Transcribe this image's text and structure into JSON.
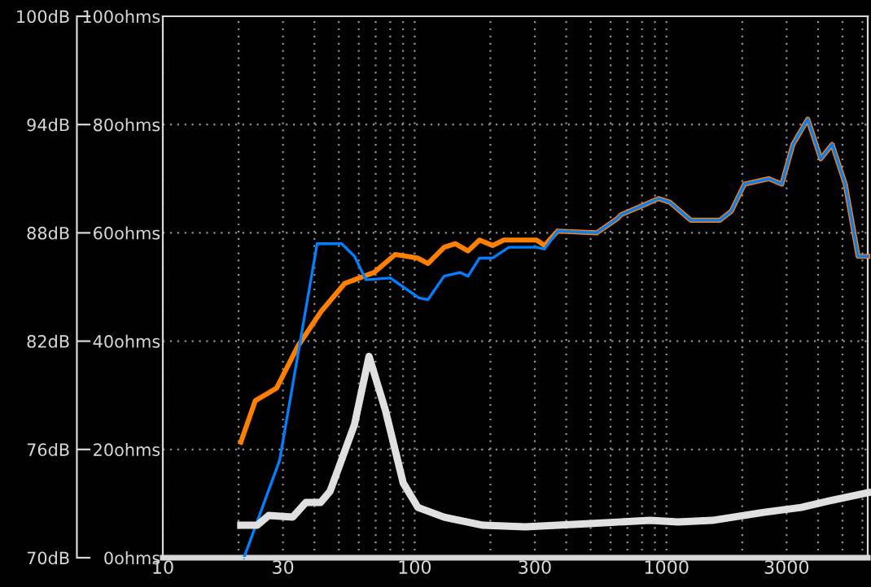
{
  "chart_data": {
    "type": "line",
    "log": "x",
    "grid": true,
    "marker": "none",
    "line_style": "solid",
    "xlim": [
      10,
      6300
    ],
    "ylim": [
      70,
      100
    ],
    "y2lim": [
      0,
      100
    ],
    "xticks": [
      10,
      {
        "value": 20,
        "label": null
      },
      30,
      {
        "value": 40,
        "label": null
      },
      {
        "value": 50,
        "label": null
      },
      {
        "value": 60,
        "label": null
      },
      {
        "value": 70,
        "label": null
      },
      {
        "value": 80,
        "label": null
      },
      {
        "value": 90,
        "label": null
      },
      100,
      {
        "value": 200,
        "label": null
      },
      300,
      {
        "value": 400,
        "label": null
      },
      {
        "value": 500,
        "label": null
      },
      {
        "value": 600,
        "label": null
      },
      {
        "value": 700,
        "label": null
      },
      {
        "value": 800,
        "label": null
      },
      {
        "value": 900,
        "label": null
      },
      1000,
      {
        "value": 2000,
        "label": null
      },
      3000,
      {
        "value": 4000,
        "label": null
      },
      {
        "value": 5000,
        "label": null
      },
      {
        "value": 6000,
        "label": null
      }
    ],
    "yticks": [
      {
        "value": 70,
        "label": "70dB"
      },
      {
        "value": 76,
        "label": "76dB"
      },
      {
        "value": 82,
        "label": "82dB"
      },
      {
        "value": 88,
        "label": "88dB"
      },
      {
        "value": 94,
        "label": "94dB"
      },
      {
        "value": 100,
        "label": "100dB"
      }
    ],
    "y2ticks": [
      {
        "value": 0,
        "label": "0ohms"
      },
      {
        "value": 20,
        "label": "20ohms"
      },
      {
        "value": 40,
        "label": "40ohms"
      },
      {
        "value": 60,
        "label": "60ohms"
      },
      {
        "value": 80,
        "label": "80ohms"
      },
      {
        "value": 100,
        "label": "100ohms"
      }
    ],
    "series": [
      {
        "color": "#e0e0e0",
        "axis": "y2",
        "x": [
          20.4,
          23.7,
          26.3,
          32.8,
          37.0,
          42.3,
          46.2,
          57.7,
          65.9,
          76.5,
          90.1,
          103,
          131,
          187,
          275,
          497,
          861,
          1110,
          1520,
          2440,
          3430,
          4420,
          6300
        ],
        "values": [
          6.0,
          6.0,
          7.8,
          7.5,
          10.2,
          10.2,
          12.3,
          24.6,
          37.2,
          27.3,
          13.8,
          9.3,
          7.5,
          6.0,
          5.7,
          6.3,
          6.9,
          6.6,
          6.9,
          8.4,
          9.3,
          10.5,
          12.0
        ]
      },
      {
        "color": "#ff8000",
        "x": [
          20.4,
          23.3,
          28.3,
          34.3,
          42.3,
          52.8,
          69.0,
          83.7,
          103,
          113,
          131,
          145,
          163,
          181,
          204,
          226,
          305,
          328,
          370,
          528,
          640,
          659,
          800,
          929,
          1030,
          1250,
          1630,
          1810,
          2040,
          2550,
          2870,
          3180,
          3640,
          4100,
          4550,
          5130,
          5770,
          6300
        ],
        "values": [
          76.4,
          78.7,
          79.4,
          81.7,
          83.6,
          85.2,
          85.8,
          86.8,
          86.6,
          86.3,
          87.2,
          87.4,
          87.0,
          87.6,
          87.3,
          87.6,
          87.6,
          87.3,
          88.1,
          88.0,
          88.8,
          89.0,
          89.5,
          89.9,
          89.7,
          88.7,
          88.7,
          89.2,
          90.7,
          91.0,
          90.7,
          92.9,
          94.3,
          92.1,
          92.9,
          90.7,
          86.7,
          86.7
        ]
      },
      {
        "color": "#0080ff",
        "x": [
          21.0,
          29.1,
          41.0,
          51.3,
          57.7,
          64.0,
          80.0,
          104,
          113,
          131,
          152,
          163,
          181,
          204,
          237,
          305,
          328,
          370,
          528,
          640,
          659,
          800,
          929,
          1030,
          1250,
          1630,
          1810,
          2040,
          2550,
          2870,
          3180,
          3640,
          4100,
          4550,
          5130,
          5770,
          6300
        ],
        "values": [
          70.0,
          75.4,
          87.4,
          87.4,
          86.7,
          85.4,
          85.5,
          84.4,
          84.3,
          85.6,
          85.8,
          85.6,
          86.6,
          86.6,
          87.2,
          87.2,
          87.1,
          88.1,
          88.0,
          88.8,
          89.0,
          89.5,
          89.9,
          89.7,
          88.7,
          88.7,
          89.2,
          90.7,
          91.0,
          90.7,
          92.9,
          94.3,
          92.1,
          92.9,
          90.7,
          86.7,
          86.7
        ]
      }
    ]
  }
}
